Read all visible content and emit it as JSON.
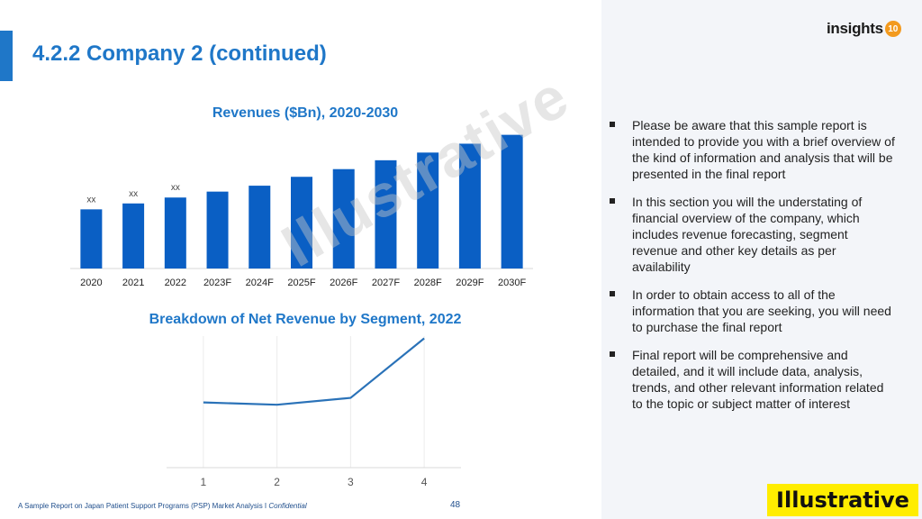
{
  "page": {
    "title": "4.2.2 Company 2 (continued)",
    "logo_text": "insights",
    "logo_badge": "10",
    "footer": "A Sample Report on Japan Patient Support Programs (PSP) Market Analysis I ",
    "footer_confidential": "Confidential",
    "page_number": "48",
    "badge": "Illustrative",
    "watermark": "Illustrative",
    "colors": {
      "accent": "#1f77c8",
      "bar": "#0a5fc4",
      "line": "#2a72b8",
      "badge": "#ffed00"
    }
  },
  "bullets": [
    "Please be aware that this sample report is intended to provide you with a brief overview of the kind of information and analysis that will be presented in the final report",
    "In this section you will the understating of financial overview of the company, which includes revenue forecasting, segment revenue and other key details as per availability",
    "In order to obtain access to all of the information that you are seeking, you will need to purchase the final report",
    "Final report will be comprehensive and detailed, and it will include data, analysis, trends, and other relevant information related to the topic or subject matter of interest"
  ],
  "chart_data": [
    {
      "type": "bar",
      "title": "Revenues ($Bn), 2020-2030",
      "categories": [
        "2020",
        "2021",
        "2022",
        "2023F",
        "2024F",
        "2025F",
        "2026F",
        "2027F",
        "2028F",
        "2029F",
        "2030F"
      ],
      "values": [
        10,
        11,
        12,
        13,
        14,
        15.5,
        16.8,
        18.3,
        19.6,
        21.1,
        22.6
      ],
      "data_labels": [
        "xx",
        "xx",
        "xx",
        "",
        "",
        "",
        "",
        "",
        "",
        "",
        ""
      ],
      "ylim": [
        0,
        23
      ],
      "grid": false
    },
    {
      "type": "line",
      "title": "Breakdown of Net Revenue by Segment, 2022",
      "x": [
        "1",
        "2",
        "3",
        "4"
      ],
      "values": [
        1.2,
        1.0,
        1.6,
        6.8
      ],
      "ylim": [
        -4.5,
        7
      ],
      "grid": true
    }
  ]
}
